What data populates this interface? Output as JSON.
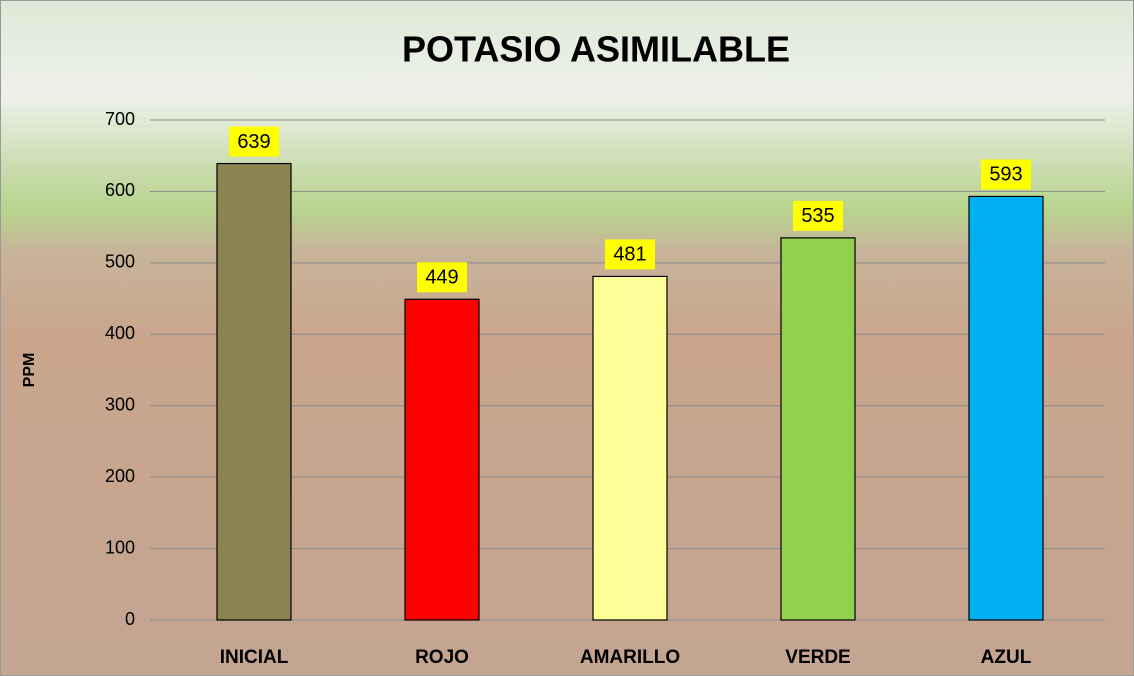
{
  "chart_data": {
    "type": "bar",
    "title": "POTASIO ASIMILABLE",
    "y_label": "PPM",
    "categories": [
      "INICIAL",
      "ROJO",
      "AMARILLO",
      "VERDE",
      "AZUL"
    ],
    "values": [
      639,
      449,
      481,
      535,
      593
    ],
    "colors": [
      "#8c8450",
      "#ff0000",
      "#ffff99",
      "#92d050",
      "#00b0f0"
    ],
    "label_background": "#ffff00",
    "ylim": [
      0,
      700
    ],
    "yticks": [
      0,
      100,
      200,
      300,
      400,
      500,
      600,
      700
    ],
    "grid": true
  }
}
